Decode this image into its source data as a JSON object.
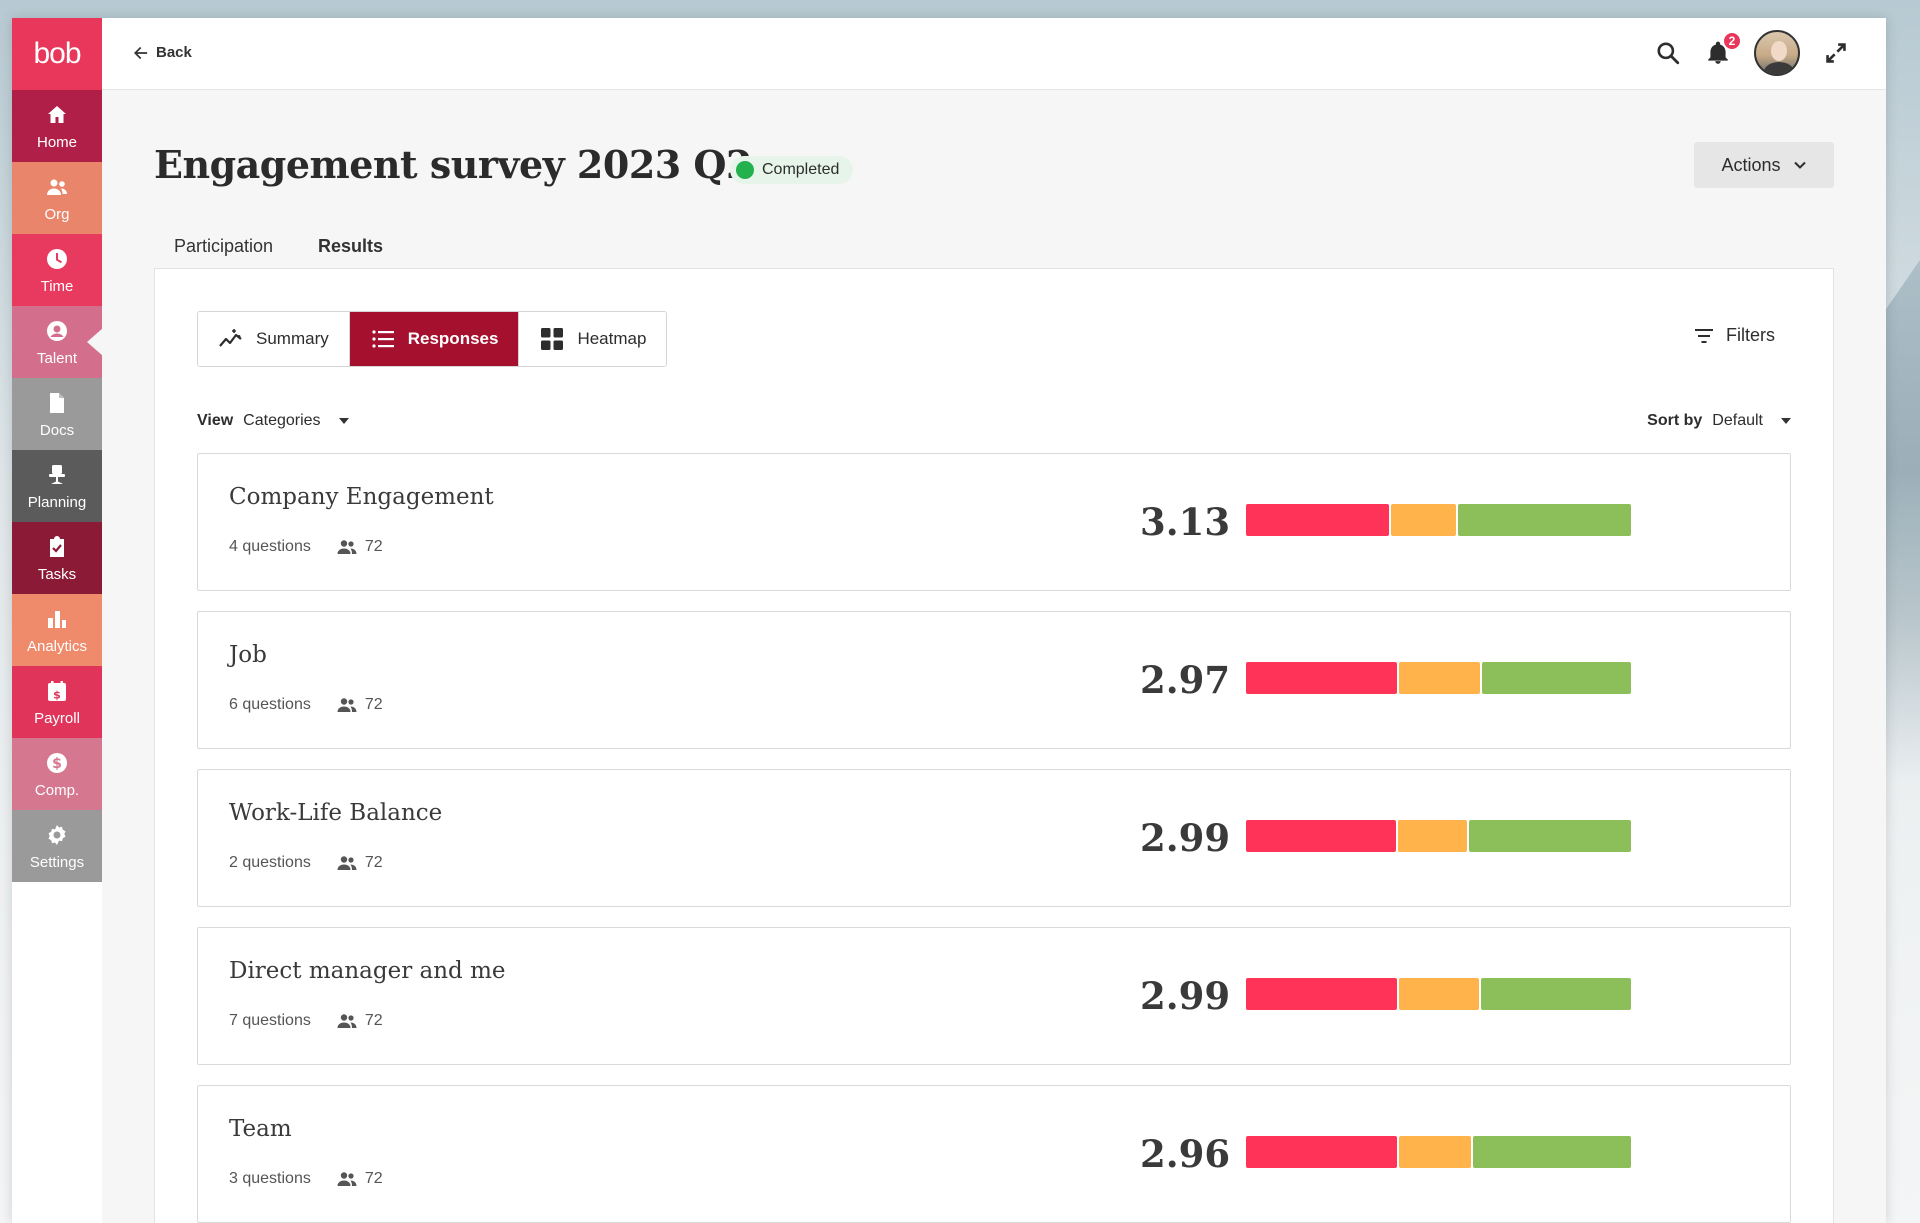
{
  "app": {
    "logo": "bob",
    "colors": {
      "brand": "#e8375a",
      "active_tab": "#a5102f",
      "status_green": "#22b14c",
      "bar_red": "#ff3358",
      "bar_orange": "#ffb34a",
      "bar_green": "#8cbf5a"
    }
  },
  "sidebar": {
    "items": [
      {
        "label": "Home",
        "icon": "home-icon",
        "color": "#b01f47",
        "active": false
      },
      {
        "label": "Org",
        "icon": "people-icon",
        "color": "#e8856a",
        "active": false
      },
      {
        "label": "Time",
        "icon": "clock-icon",
        "color": "#e83a5f",
        "active": false
      },
      {
        "label": "Talent",
        "icon": "talent-icon",
        "color": "#d36e8d",
        "active": true
      },
      {
        "label": "Docs",
        "icon": "document-icon",
        "color": "#9a9a9a",
        "active": false
      },
      {
        "label": "Planning",
        "icon": "chair-icon",
        "color": "#5b5b5b",
        "active": false
      },
      {
        "label": "Tasks",
        "icon": "clipboard-check-icon",
        "color": "#8b1a36",
        "active": false
      },
      {
        "label": "Analytics",
        "icon": "bar-chart-icon",
        "color": "#ef8a6b",
        "active": false
      },
      {
        "label": "Payroll",
        "icon": "payroll-calendar-icon",
        "color": "#e0345a",
        "active": false
      },
      {
        "label": "Comp.",
        "icon": "dollar-icon",
        "color": "#d4778f",
        "active": false
      },
      {
        "label": "Settings",
        "icon": "gear-icon",
        "color": "#9a9a9a",
        "active": false
      }
    ]
  },
  "topbar": {
    "back_label": "Back",
    "notifications_count": "2"
  },
  "page": {
    "title": "Engagement survey 2023 Q2",
    "status": "Completed",
    "actions_label": "Actions",
    "tabs": [
      {
        "label": "Participation"
      },
      {
        "label": "Results"
      }
    ]
  },
  "results": {
    "view_buttons": [
      {
        "label": "Summary",
        "icon": "trend-icon"
      },
      {
        "label": "Responses",
        "icon": "list-icon"
      },
      {
        "label": "Heatmap",
        "icon": "grid-icon"
      }
    ],
    "filters_label": "Filters",
    "view_label": "View",
    "view_value": "Categories",
    "sort_label": "Sort by",
    "sort_value": "Default",
    "categories": [
      {
        "name": "Company Engagement",
        "questions": "4 questions",
        "respondents": "72",
        "score": "3.13",
        "distribution": [
          0.375,
          0.17,
          0.455
        ]
      },
      {
        "name": "Job",
        "questions": "6 questions",
        "respondents": "72",
        "score": "2.97",
        "distribution": [
          0.395,
          0.215,
          0.39
        ]
      },
      {
        "name": "Work-Life Balance",
        "questions": "2 questions",
        "respondents": "72",
        "score": "2.99",
        "distribution": [
          0.395,
          0.18,
          0.425
        ]
      },
      {
        "name": "Direct manager and me",
        "questions": "7 questions",
        "respondents": "72",
        "score": "2.99",
        "distribution": [
          0.395,
          0.21,
          0.395
        ]
      },
      {
        "name": "Team",
        "questions": "3 questions",
        "respondents": "72",
        "score": "2.96",
        "distribution": [
          0.395,
          0.19,
          0.415
        ]
      }
    ]
  }
}
